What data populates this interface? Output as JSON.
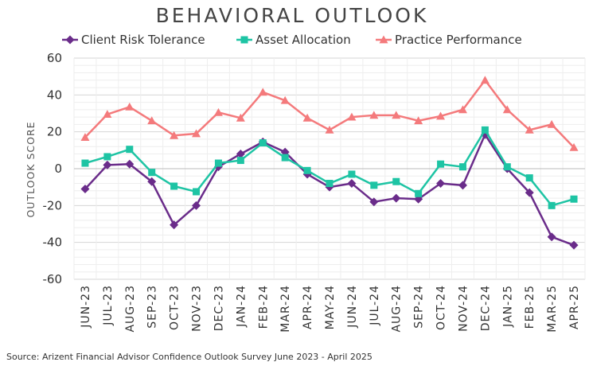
{
  "chart_data": {
    "type": "line",
    "title": "BEHAVIORAL OUTLOOK",
    "ylabel": "OUTLOOK SCORE",
    "xlabel": "",
    "ylim": [
      -60,
      60
    ],
    "yticks": [
      60,
      40,
      20,
      0,
      -20,
      -40,
      -60
    ],
    "grid": true,
    "legend_position": "top",
    "categories": [
      "JUN-23",
      "JUL-23",
      "AUG-23",
      "SEP-23",
      "OCT-23",
      "NOV-23",
      "DEC-23",
      "JAN-24",
      "FEB-24",
      "MAR-24",
      "APR-24",
      "MAY-24",
      "JUN-24",
      "JUL-24",
      "AUG-24",
      "SEP-24",
      "OCT-24",
      "NOV-24",
      "DEC-24",
      "JAN-25",
      "FEB-25",
      "MAR-25",
      "APR-25"
    ],
    "series": [
      {
        "name": "Client Risk Tolerance",
        "color": "#6a2c8a",
        "marker": "diamond",
        "values": [
          -11,
          2,
          2.5,
          -7,
          -30.5,
          -20,
          1,
          8,
          14.5,
          9,
          -3,
          -10,
          -8,
          -18,
          -16,
          -16.5,
          -8,
          -9,
          18.5,
          0,
          -13,
          -37,
          -41.5
        ]
      },
      {
        "name": "Asset Allocation",
        "color": "#1ec4a4",
        "marker": "square",
        "values": [
          3,
          6.5,
          10.5,
          -2,
          -9.5,
          -12.5,
          3,
          4.5,
          14,
          6,
          -1,
          -8,
          -3,
          -9,
          -7,
          -13.5,
          2.5,
          1,
          21,
          1,
          -5,
          -20,
          -16.5
        ]
      },
      {
        "name": "Practice Performance",
        "color": "#f47a7c",
        "marker": "triangle",
        "values": [
          17,
          29.5,
          33.5,
          26,
          18,
          19,
          30.5,
          27.5,
          41.5,
          37,
          27.5,
          21,
          28,
          29,
          29,
          26,
          28.5,
          32,
          48,
          32,
          21,
          24,
          11.5
        ]
      }
    ]
  },
  "source": "Source: Arizent Financial Advisor Confidence Outlook Survey June 2023 - April 2025"
}
